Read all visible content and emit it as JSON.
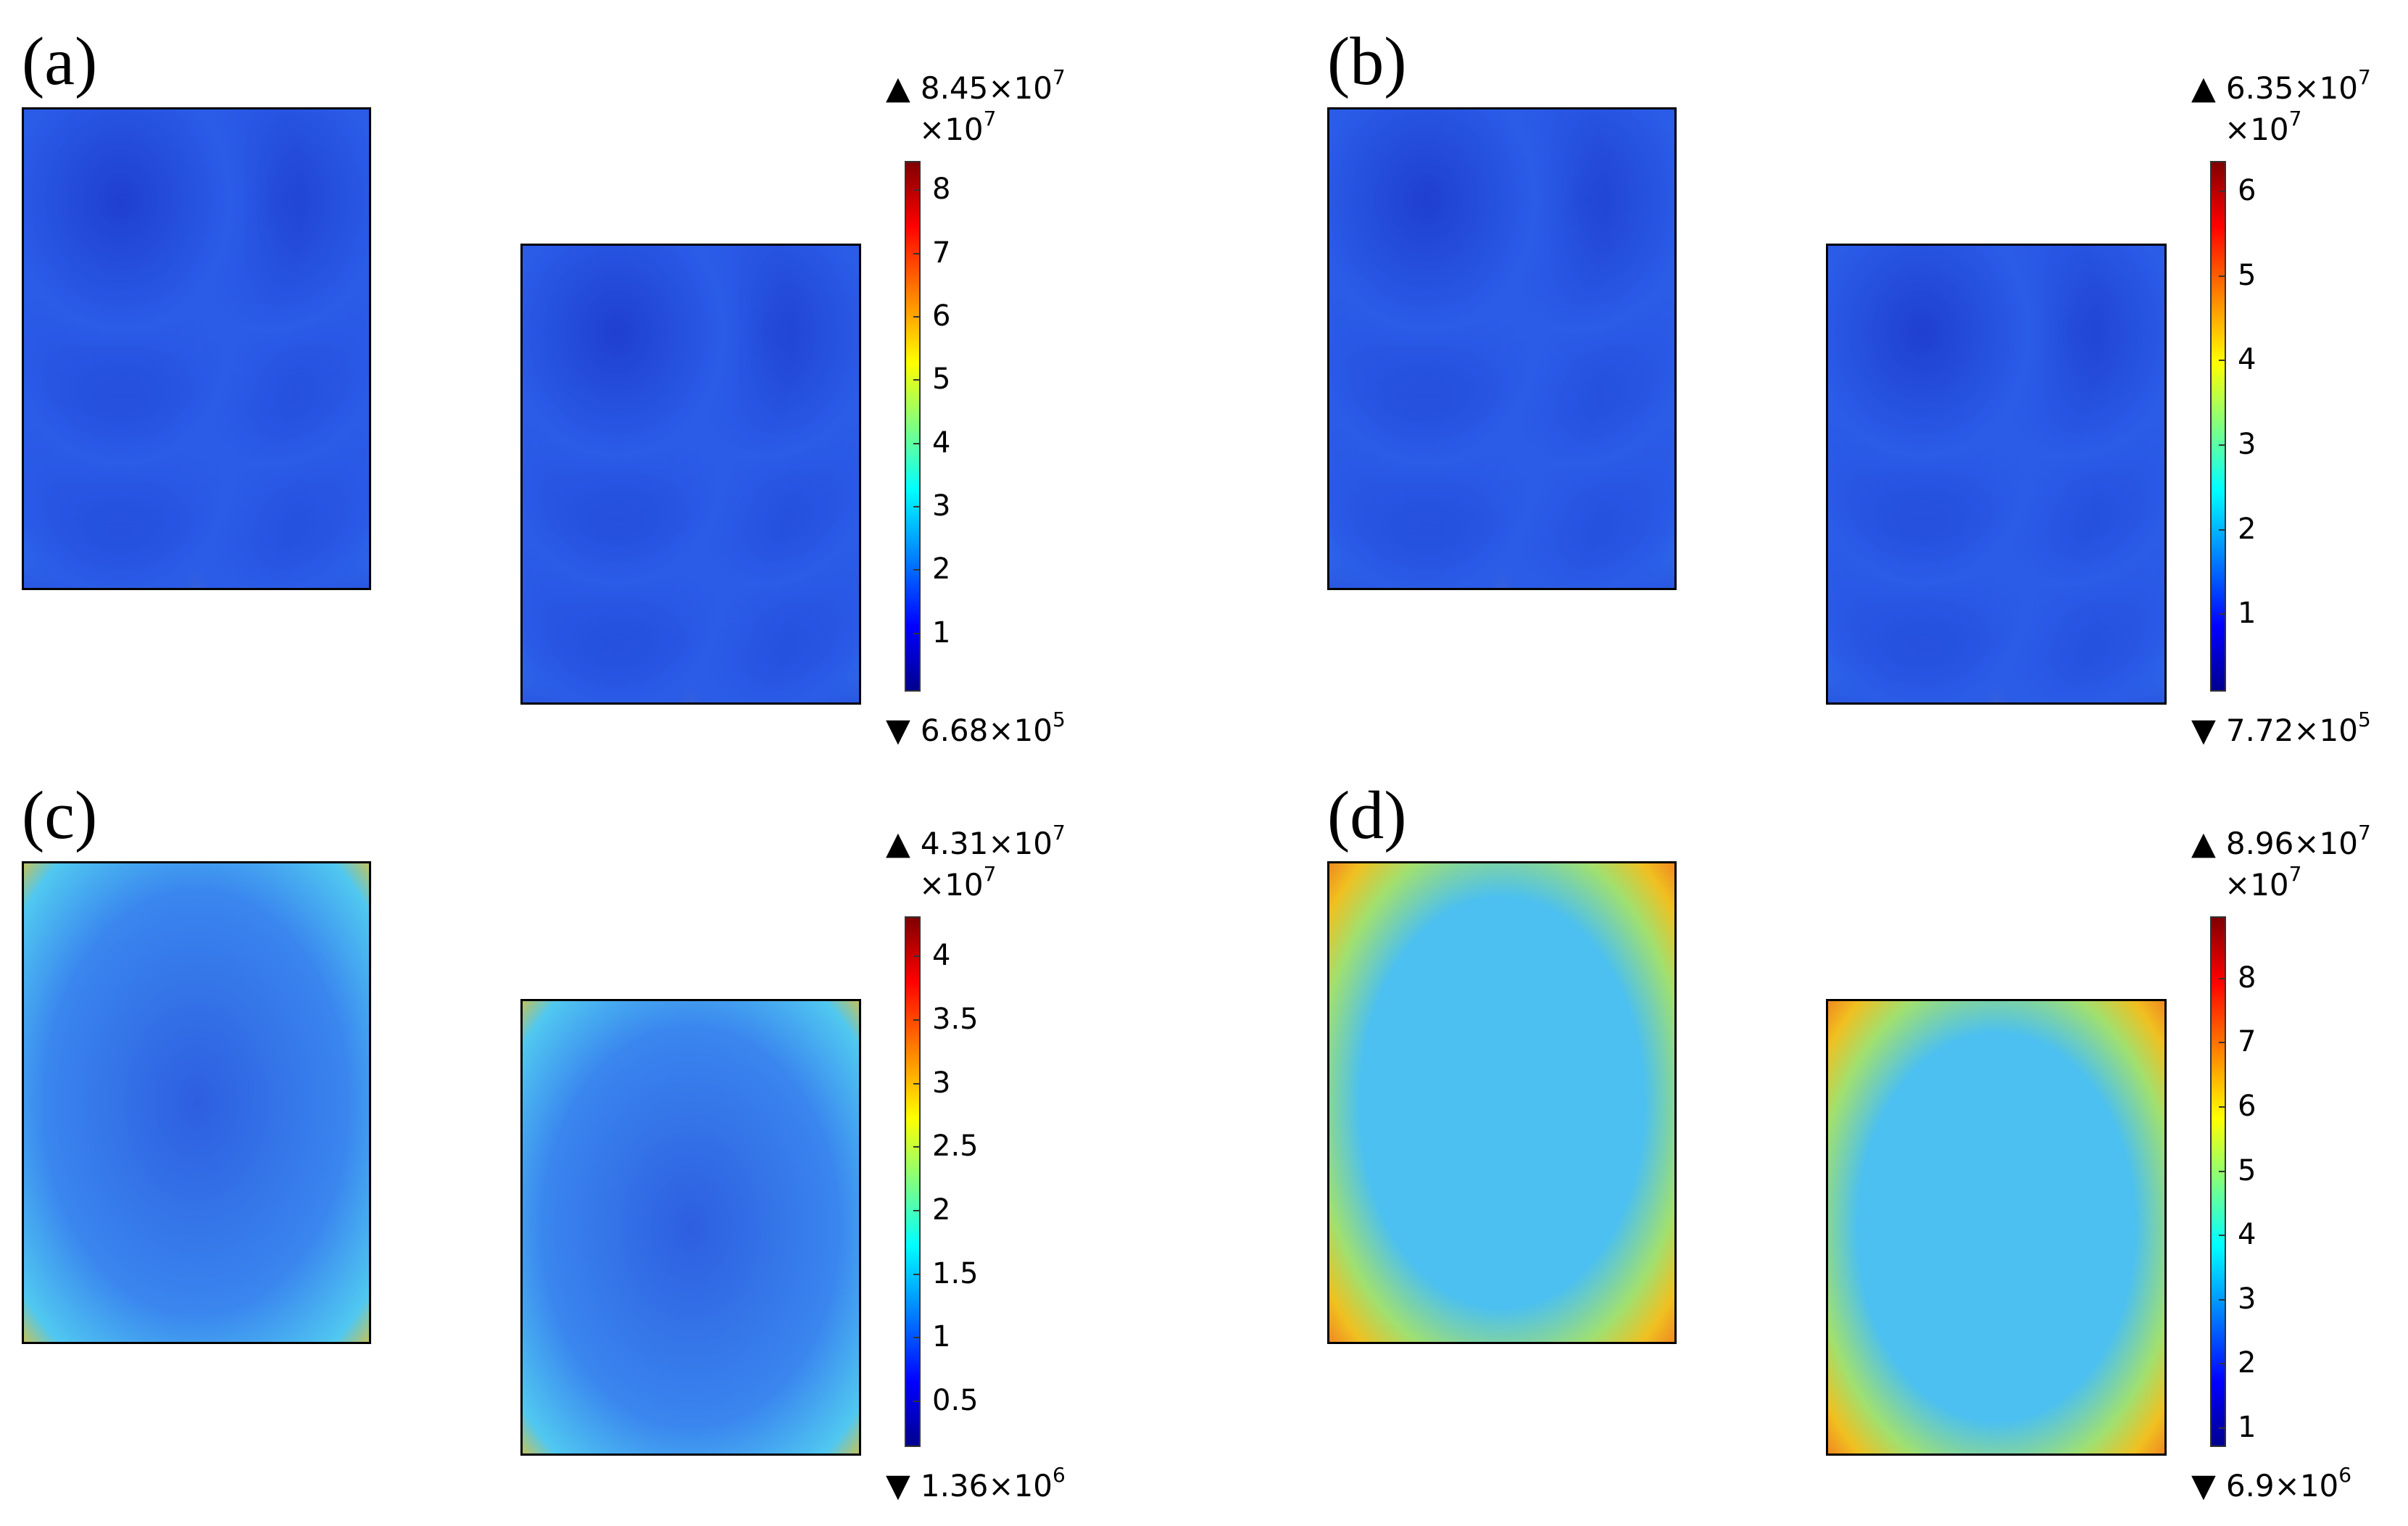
{
  "panels": [
    {
      "id": "a",
      "label": "(a)",
      "max_base": "8.45×10",
      "max_exp": "7",
      "min_base": "6.68×10",
      "min_exp": "5",
      "multiplier_base": "×10",
      "multiplier_exp": "7",
      "ticks": [
        "8",
        "7",
        "6",
        "5",
        "4",
        "3",
        "2",
        "1"
      ],
      "tick_values": [
        8,
        7,
        6,
        5,
        4,
        3,
        2,
        1
      ],
      "range": [
        0.0668,
        8.45
      ],
      "style": "grid"
    },
    {
      "id": "b",
      "label": "(b)",
      "max_base": "6.35×10",
      "max_exp": "7",
      "min_base": "7.72×10",
      "min_exp": "5",
      "multiplier_base": "×10",
      "multiplier_exp": "7",
      "ticks": [
        "6",
        "5",
        "4",
        "3",
        "2",
        "1"
      ],
      "tick_values": [
        6,
        5,
        4,
        3,
        2,
        1
      ],
      "range": [
        0.0772,
        6.35
      ],
      "style": "grid"
    },
    {
      "id": "c",
      "label": "(c)",
      "max_base": "4.31×10",
      "max_exp": "7",
      "min_base": "1.36×10",
      "min_exp": "6",
      "multiplier_base": "×10",
      "multiplier_exp": "7",
      "ticks": [
        "4",
        "3.5",
        "3",
        "2.5",
        "2",
        "1.5",
        "1",
        "0.5"
      ],
      "tick_values": [
        4,
        3.5,
        3,
        2.5,
        2,
        1.5,
        1,
        0.5
      ],
      "range": [
        0.136,
        4.31
      ],
      "style": "speckle"
    },
    {
      "id": "d",
      "label": "(d)",
      "max_base": "8.96×10",
      "max_exp": "7",
      "min_base": "6.9×10",
      "min_exp": "6",
      "multiplier_base": "×10",
      "multiplier_exp": "7",
      "ticks": [
        "8",
        "7",
        "6",
        "5",
        "4",
        "3",
        "2",
        "1"
      ],
      "tick_values": [
        8,
        7,
        6,
        5,
        4,
        3,
        2,
        1
      ],
      "range": [
        0.69,
        8.96
      ],
      "style": "hotframe"
    }
  ],
  "colors": {
    "jet_top": "#800000",
    "jet_bottom": "#00008f"
  }
}
